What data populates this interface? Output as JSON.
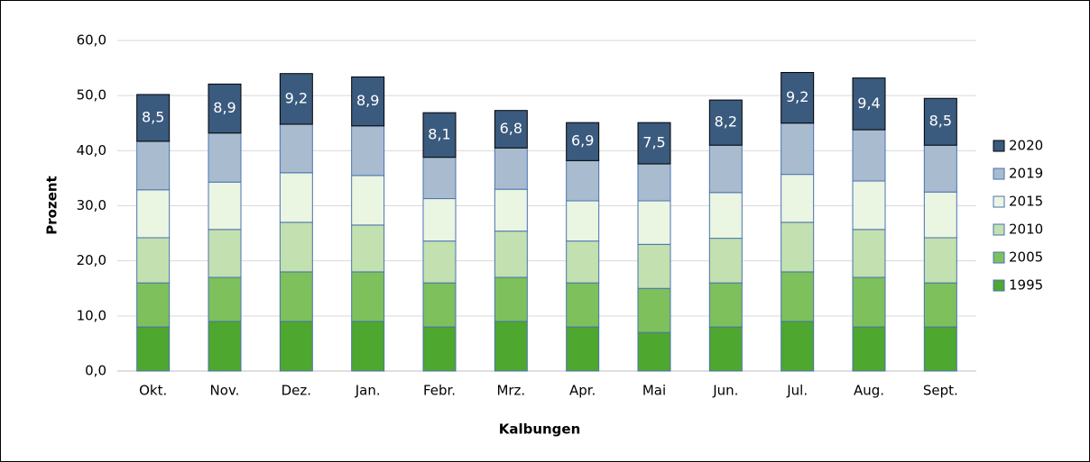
{
  "chart_data": {
    "type": "stacked-bar",
    "x_label": "Kalbungen",
    "y_label": "Prozent",
    "categories": [
      "Okt.",
      "Nov.",
      "Dez.",
      "Jan.",
      "Febr.",
      "Mrz.",
      "Apr.",
      "Mai",
      "Jun.",
      "Jul.",
      "Aug.",
      "Sept."
    ],
    "series": [
      {
        "name": "1995",
        "color": "#4ea72e",
        "values": [
          8,
          9,
          9,
          9,
          8,
          9,
          8,
          7,
          8,
          9,
          8,
          8
        ]
      },
      {
        "name": "2005",
        "color": "#7dc05c",
        "values": [
          8,
          8,
          9,
          9,
          8,
          8,
          8,
          8,
          8,
          9,
          9,
          8
        ]
      },
      {
        "name": "2010",
        "color": "#c3e0b0",
        "values": [
          8.2,
          8.7,
          9,
          8.5,
          7.6,
          8.4,
          7.6,
          8,
          8.1,
          9,
          8.7,
          8.2
        ]
      },
      {
        "name": "2015",
        "color": "#eaf5e2",
        "values": [
          8.7,
          8.6,
          9,
          9,
          7.7,
          7.6,
          7.3,
          7.9,
          8.3,
          8.7,
          8.8,
          8.3
        ]
      },
      {
        "name": "2019",
        "color": "#a9bccf",
        "values": [
          8.8,
          8.9,
          8.8,
          9,
          7.5,
          7.5,
          7.3,
          6.7,
          8.6,
          9.3,
          9.3,
          8.5
        ]
      },
      {
        "name": "2020",
        "color": "#3a5a7e",
        "values": [
          8.5,
          8.9,
          9.2,
          8.9,
          8.1,
          6.8,
          6.9,
          7.5,
          8.2,
          9.2,
          9.4,
          8.5
        ],
        "value_labels": [
          "8,5",
          "8,9",
          "9,2",
          "8,9",
          "8,1",
          "6,8",
          "6,9",
          "7,5",
          "8,2",
          "9,2",
          "9,4",
          "8,5"
        ]
      }
    ],
    "ylim": [
      0,
      60
    ],
    "yticks": [
      {
        "value": 0,
        "label": "0,0"
      },
      {
        "value": 10,
        "label": "10,0"
      },
      {
        "value": 20,
        "label": "20,0"
      },
      {
        "value": 30,
        "label": "30,0"
      },
      {
        "value": 40,
        "label": "40,0"
      },
      {
        "value": 50,
        "label": "50,0"
      },
      {
        "value": 60,
        "label": "60,0"
      }
    ],
    "grid": true,
    "legend": "right"
  }
}
